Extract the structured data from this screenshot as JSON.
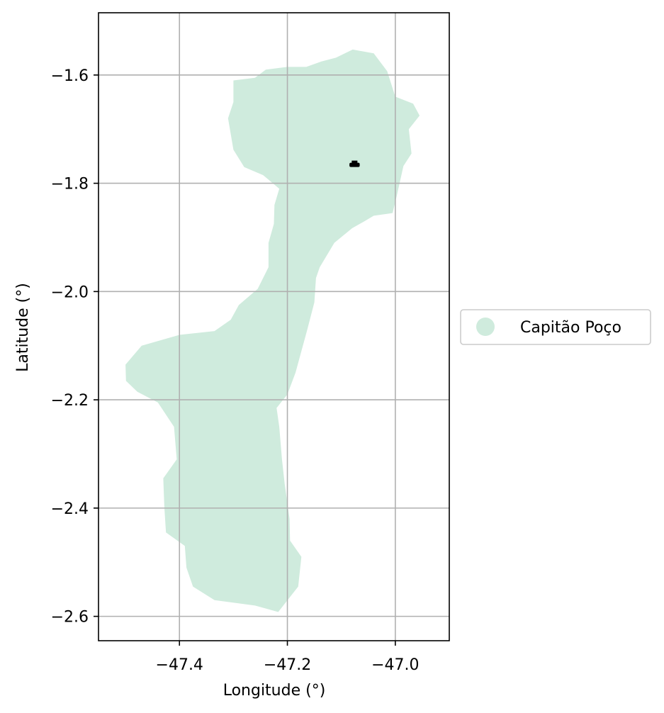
{
  "chart_data": {
    "type": "map",
    "xlabel": "Longitude (°)",
    "ylabel": "Latitude (°)",
    "xlim": [
      -47.55,
      -46.9
    ],
    "ylim": [
      -2.645,
      -1.485
    ],
    "x_ticks": [
      {
        "value": -47.4,
        "label": "−47.4"
      },
      {
        "value": -47.2,
        "label": "−47.2"
      },
      {
        "value": -47.0,
        "label": "−47.0"
      }
    ],
    "y_ticks": [
      {
        "value": -1.6,
        "label": "−1.6"
      },
      {
        "value": -1.8,
        "label": "−1.8"
      },
      {
        "value": -2.0,
        "label": "−2.0"
      },
      {
        "value": -2.2,
        "label": "−2.2"
      },
      {
        "value": -2.4,
        "label": "−2.4"
      },
      {
        "value": -2.6,
        "label": "−2.6"
      }
    ],
    "grid": true,
    "legend": {
      "placement": "right",
      "entries": [
        {
          "label": "Capitão Poço",
          "color": "#cfebdd"
        }
      ]
    },
    "region": {
      "name": "Capitão Poço",
      "color": "#cfebdd",
      "outline_lonlat": [
        [
          -47.079,
          -1.553
        ],
        [
          -47.04,
          -1.56
        ],
        [
          -47.015,
          -1.593
        ],
        [
          -47.0,
          -1.64
        ],
        [
          -46.967,
          -1.653
        ],
        [
          -46.955,
          -1.675
        ],
        [
          -46.975,
          -1.7
        ],
        [
          -46.97,
          -1.745
        ],
        [
          -46.985,
          -1.768
        ],
        [
          -46.997,
          -1.822
        ],
        [
          -47.005,
          -1.855
        ],
        [
          -47.04,
          -1.86
        ],
        [
          -47.057,
          -1.87
        ],
        [
          -47.08,
          -1.883
        ],
        [
          -47.113,
          -1.91
        ],
        [
          -47.14,
          -1.955
        ],
        [
          -47.147,
          -1.975
        ],
        [
          -47.15,
          -2.02
        ],
        [
          -47.163,
          -2.07
        ],
        [
          -47.185,
          -2.15
        ],
        [
          -47.2,
          -2.19
        ],
        [
          -47.22,
          -2.215
        ],
        [
          -47.215,
          -2.25
        ],
        [
          -47.21,
          -2.31
        ],
        [
          -47.205,
          -2.355
        ],
        [
          -47.196,
          -2.42
        ],
        [
          -47.195,
          -2.46
        ],
        [
          -47.174,
          -2.49
        ],
        [
          -47.18,
          -2.545
        ],
        [
          -47.217,
          -2.592
        ],
        [
          -47.26,
          -2.58
        ],
        [
          -47.335,
          -2.57
        ],
        [
          -47.375,
          -2.545
        ],
        [
          -47.387,
          -2.51
        ],
        [
          -47.39,
          -2.47
        ],
        [
          -47.425,
          -2.445
        ],
        [
          -47.428,
          -2.398
        ],
        [
          -47.43,
          -2.345
        ],
        [
          -47.405,
          -2.31
        ],
        [
          -47.41,
          -2.25
        ],
        [
          -47.44,
          -2.205
        ],
        [
          -47.478,
          -2.185
        ],
        [
          -47.499,
          -2.165
        ],
        [
          -47.5,
          -2.135
        ],
        [
          -47.47,
          -2.1
        ],
        [
          -47.4,
          -2.08
        ],
        [
          -47.335,
          -2.073
        ],
        [
          -47.305,
          -2.052
        ],
        [
          -47.29,
          -2.025
        ],
        [
          -47.255,
          -1.995
        ],
        [
          -47.235,
          -1.955
        ],
        [
          -47.235,
          -1.91
        ],
        [
          -47.225,
          -1.875
        ],
        [
          -47.224,
          -1.84
        ],
        [
          -47.215,
          -1.81
        ],
        [
          -47.245,
          -1.785
        ],
        [
          -47.28,
          -1.77
        ],
        [
          -47.3,
          -1.738
        ],
        [
          -47.31,
          -1.68
        ],
        [
          -47.3,
          -1.65
        ],
        [
          -47.3,
          -1.61
        ],
        [
          -47.26,
          -1.605
        ],
        [
          -47.24,
          -1.59
        ],
        [
          -47.2,
          -1.585
        ],
        [
          -47.165,
          -1.585
        ],
        [
          -47.137,
          -1.575
        ],
        [
          -47.11,
          -1.568
        ],
        [
          -47.079,
          -1.553
        ]
      ]
    },
    "seat_marker": {
      "lon_range": [
        -47.085,
        -47.066
      ],
      "lat": -1.766,
      "color": "#000000"
    }
  }
}
